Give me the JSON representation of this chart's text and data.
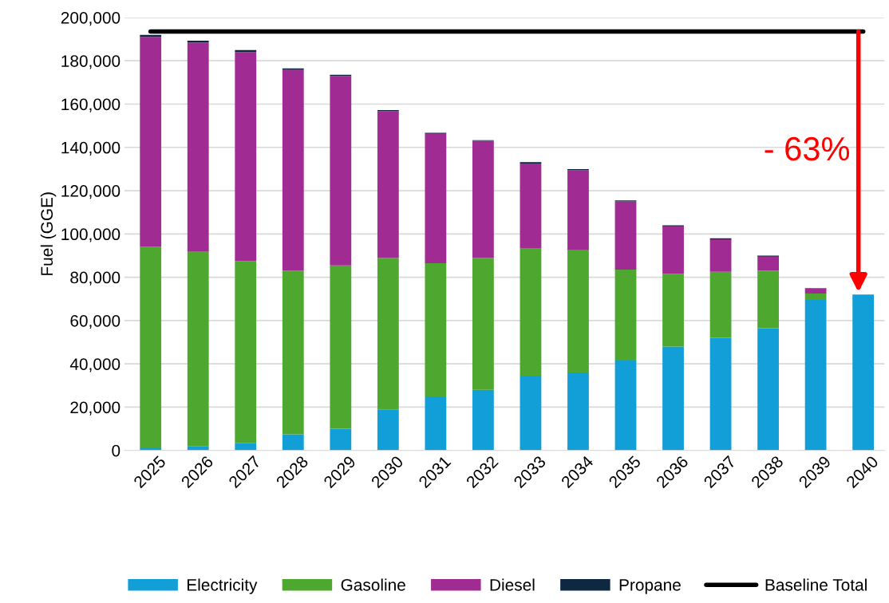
{
  "chart_data": {
    "type": "bar",
    "stacked": true,
    "ylabel": "Fuel (GGE)",
    "categories": [
      "2025",
      "2026",
      "2027",
      "2028",
      "2029",
      "2030",
      "2031",
      "2032",
      "2033",
      "2034",
      "2035",
      "2036",
      "2037",
      "2038",
      "2039",
      "2040"
    ],
    "series": [
      {
        "name": "Electricity",
        "color": "#129fd8",
        "values": [
          1000,
          2000,
          3500,
          7500,
          10000,
          19000,
          25000,
          28000,
          34500,
          36000,
          41500,
          48000,
          52000,
          56500,
          69500,
          72000
        ]
      },
      {
        "name": "Gasoline",
        "color": "#4ea72e",
        "values": [
          93000,
          90000,
          84000,
          75500,
          75500,
          70000,
          61500,
          61000,
          59000,
          56500,
          42000,
          33500,
          30500,
          26500,
          3000,
          0
        ]
      },
      {
        "name": "Diesel",
        "color": "#a02b93",
        "values": [
          97000,
          96500,
          96500,
          93000,
          87500,
          67800,
          59800,
          54000,
          39000,
          37000,
          31500,
          22000,
          15000,
          6500,
          2500,
          0
        ]
      },
      {
        "name": "Propane",
        "color": "#0e2841",
        "values": [
          1000,
          800,
          1000,
          500,
          500,
          400,
          400,
          300,
          700,
          500,
          500,
          500,
          500,
          500,
          0,
          0
        ]
      },
      {
        "name": "Baseline Total",
        "type": "line",
        "color": "#000000",
        "values": [
          193500,
          193500,
          193500,
          193500,
          193500,
          193500,
          193500,
          193500,
          193500,
          193500,
          193500,
          193500,
          193500,
          193500,
          193500,
          193500
        ]
      }
    ],
    "ylim": [
      0,
      200000
    ],
    "yticks": [
      {
        "value": 0,
        "label": "0"
      },
      {
        "value": 20000,
        "label": "20,000"
      },
      {
        "value": 40000,
        "label": "40,000"
      },
      {
        "value": 60000,
        "label": "60,000"
      },
      {
        "value": 80000,
        "label": "80,000"
      },
      {
        "value": 100000,
        "label": "100,000"
      },
      {
        "value": 120000,
        "label": "120,000"
      },
      {
        "value": 140000,
        "label": "140,000"
      },
      {
        "value": 160000,
        "label": "160,000"
      },
      {
        "value": 180000,
        "label": "180,000"
      },
      {
        "value": 200000,
        "label": "200,000"
      }
    ],
    "grid": "y",
    "legend": "bottom",
    "annotations": [
      "- 63%"
    ]
  }
}
